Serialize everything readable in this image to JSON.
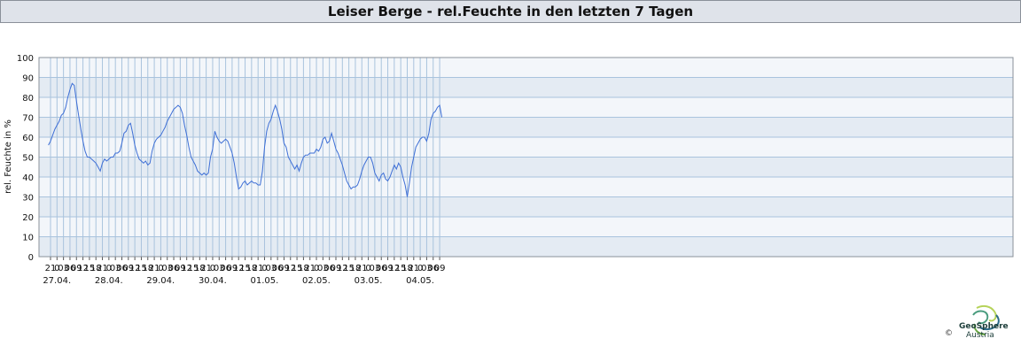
{
  "title": "Leiser Berge - rel.Feuchte in den letzten 7 Tagen",
  "logo": {
    "name": "GeoSphere",
    "sub": "Austria",
    "copyright": "©"
  },
  "colors": {
    "line": "#3e6fd6",
    "band_a": "#e4ebf3",
    "band_b": "#f3f6fa",
    "grid": "#a9c3dd"
  },
  "chart_data": {
    "type": "line",
    "title": "Leiser Berge - rel.Feuchte in den letzten 7 Tagen",
    "ylabel": "rel. Feuchte in %",
    "xlabel": "",
    "ylim": [
      0,
      100
    ],
    "yticks": [
      0,
      10,
      20,
      30,
      40,
      50,
      60,
      70,
      80,
      90,
      100
    ],
    "x_unit": "hours since 26.04. 20:00",
    "xlim": [
      0,
      182
    ],
    "hour_tick_labels": [
      "21",
      "0",
      "03",
      "06",
      "09",
      "12",
      "15",
      "18",
      "21",
      "0",
      "03",
      "06",
      "09",
      "12",
      "15",
      "18",
      "21",
      "0",
      "03",
      "06",
      "09",
      "12",
      "15",
      "18",
      "21",
      "0",
      "03",
      "06",
      "09",
      "12",
      "15",
      "18",
      "21",
      "0",
      "03",
      "06",
      "09",
      "12",
      "15",
      "18",
      "21",
      "0",
      "03",
      "06",
      "09",
      "12",
      "15",
      "18",
      "21",
      "0",
      "03",
      "06",
      "09",
      "12",
      "15",
      "18",
      "21",
      "0",
      "03",
      "06",
      "09"
    ],
    "date_labels": [
      "27.04.",
      "28.04.",
      "29.04.",
      "30.04.",
      "01.05.",
      "02.05.",
      "03.05.",
      "04.05."
    ],
    "grid": true,
    "series": [
      {
        "values": [
          [
            0,
            56
          ],
          [
            1,
            58
          ],
          [
            2,
            61
          ],
          [
            3,
            64
          ],
          [
            4,
            66
          ],
          [
            5,
            68
          ],
          [
            6,
            71
          ],
          [
            7,
            72
          ],
          [
            8,
            75
          ],
          [
            9,
            80
          ],
          [
            10,
            84
          ],
          [
            11,
            87
          ],
          [
            12,
            86
          ],
          [
            13,
            78
          ],
          [
            14,
            71
          ],
          [
            15,
            64
          ],
          [
            16,
            58
          ],
          [
            17,
            53
          ],
          [
            18,
            50
          ],
          [
            19,
            50
          ],
          [
            20,
            49
          ],
          [
            21,
            48
          ],
          [
            22,
            47
          ],
          [
            23,
            45
          ],
          [
            24,
            43
          ],
          [
            25,
            47
          ],
          [
            26,
            49
          ],
          [
            27,
            48
          ],
          [
            28,
            49
          ],
          [
            29,
            50
          ],
          [
            30,
            50
          ],
          [
            31,
            52
          ],
          [
            32,
            52
          ],
          [
            33,
            53
          ],
          [
            34,
            57
          ],
          [
            35,
            62
          ],
          [
            36,
            63
          ],
          [
            37,
            66
          ],
          [
            38,
            67
          ],
          [
            39,
            62
          ],
          [
            40,
            56
          ],
          [
            41,
            52
          ],
          [
            42,
            49
          ],
          [
            43,
            48
          ],
          [
            44,
            47
          ],
          [
            45,
            48
          ],
          [
            46,
            46
          ],
          [
            47,
            47
          ],
          [
            48,
            53
          ],
          [
            49,
            57
          ],
          [
            50,
            59
          ],
          [
            51,
            60
          ],
          [
            52,
            61
          ],
          [
            53,
            63
          ],
          [
            54,
            65
          ],
          [
            55,
            68
          ],
          [
            56,
            70
          ],
          [
            57,
            72
          ],
          [
            58,
            74
          ],
          [
            59,
            75
          ],
          [
            60,
            76
          ],
          [
            61,
            75
          ],
          [
            62,
            72
          ],
          [
            63,
            66
          ],
          [
            64,
            61
          ],
          [
            65,
            55
          ],
          [
            66,
            50
          ],
          [
            67,
            48
          ],
          [
            68,
            46
          ],
          [
            69,
            43
          ],
          [
            70,
            42
          ],
          [
            71,
            41
          ],
          [
            72,
            42
          ],
          [
            73,
            41
          ],
          [
            74,
            42
          ],
          [
            75,
            50
          ],
          [
            76,
            54
          ],
          [
            77,
            63
          ],
          [
            78,
            60
          ],
          [
            79,
            58
          ],
          [
            80,
            57
          ],
          [
            81,
            58
          ],
          [
            82,
            59
          ],
          [
            83,
            58
          ],
          [
            84,
            55
          ],
          [
            85,
            52
          ],
          [
            86,
            47
          ],
          [
            87,
            40
          ],
          [
            88,
            34
          ],
          [
            89,
            35
          ],
          [
            90,
            37
          ],
          [
            91,
            38
          ],
          [
            92,
            36
          ],
          [
            93,
            37
          ],
          [
            94,
            38
          ],
          [
            95,
            37
          ],
          [
            96,
            37
          ],
          [
            97,
            36
          ],
          [
            98,
            36
          ],
          [
            99,
            43
          ],
          [
            100,
            55
          ],
          [
            101,
            63
          ],
          [
            102,
            67
          ],
          [
            103,
            69
          ],
          [
            104,
            73
          ],
          [
            105,
            76
          ],
          [
            106,
            73
          ],
          [
            107,
            69
          ],
          [
            108,
            64
          ],
          [
            109,
            57
          ],
          [
            110,
            55
          ],
          [
            111,
            50
          ],
          [
            112,
            48
          ],
          [
            113,
            46
          ],
          [
            114,
            44
          ],
          [
            115,
            46
          ],
          [
            116,
            43
          ],
          [
            117,
            47
          ],
          [
            118,
            50
          ],
          [
            119,
            51
          ],
          [
            120,
            51
          ],
          [
            121,
            52
          ],
          [
            122,
            52
          ],
          [
            123,
            52
          ],
          [
            124,
            54
          ],
          [
            125,
            53
          ],
          [
            126,
            55
          ],
          [
            127,
            59
          ],
          [
            128,
            60
          ],
          [
            129,
            57
          ],
          [
            130,
            58
          ],
          [
            131,
            62
          ],
          [
            132,
            58
          ],
          [
            133,
            54
          ],
          [
            134,
            52
          ],
          [
            135,
            49
          ],
          [
            136,
            46
          ],
          [
            137,
            42
          ],
          [
            138,
            38
          ],
          [
            139,
            36
          ],
          [
            140,
            34
          ],
          [
            141,
            35
          ],
          [
            142,
            35
          ],
          [
            143,
            36
          ],
          [
            144,
            39
          ],
          [
            145,
            43
          ],
          [
            146,
            46
          ],
          [
            147,
            48
          ],
          [
            148,
            50
          ],
          [
            149,
            50
          ],
          [
            150,
            47
          ],
          [
            151,
            42
          ],
          [
            152,
            40
          ],
          [
            153,
            38
          ],
          [
            154,
            41
          ],
          [
            155,
            42
          ],
          [
            156,
            39
          ],
          [
            157,
            38
          ],
          [
            158,
            40
          ],
          [
            159,
            43
          ],
          [
            160,
            46
          ],
          [
            161,
            44
          ],
          [
            162,
            47
          ],
          [
            163,
            45
          ],
          [
            164,
            40
          ],
          [
            165,
            36
          ],
          [
            166,
            30
          ],
          [
            167,
            37
          ],
          [
            168,
            45
          ],
          [
            169,
            50
          ],
          [
            170,
            55
          ],
          [
            171,
            57
          ],
          [
            172,
            59
          ],
          [
            173,
            60
          ],
          [
            174,
            60
          ],
          [
            175,
            58
          ],
          [
            176,
            62
          ],
          [
            177,
            69
          ],
          [
            178,
            72
          ],
          [
            179,
            73
          ],
          [
            180,
            75
          ],
          [
            181,
            76
          ],
          [
            182,
            70
          ]
        ]
      }
    ]
  }
}
